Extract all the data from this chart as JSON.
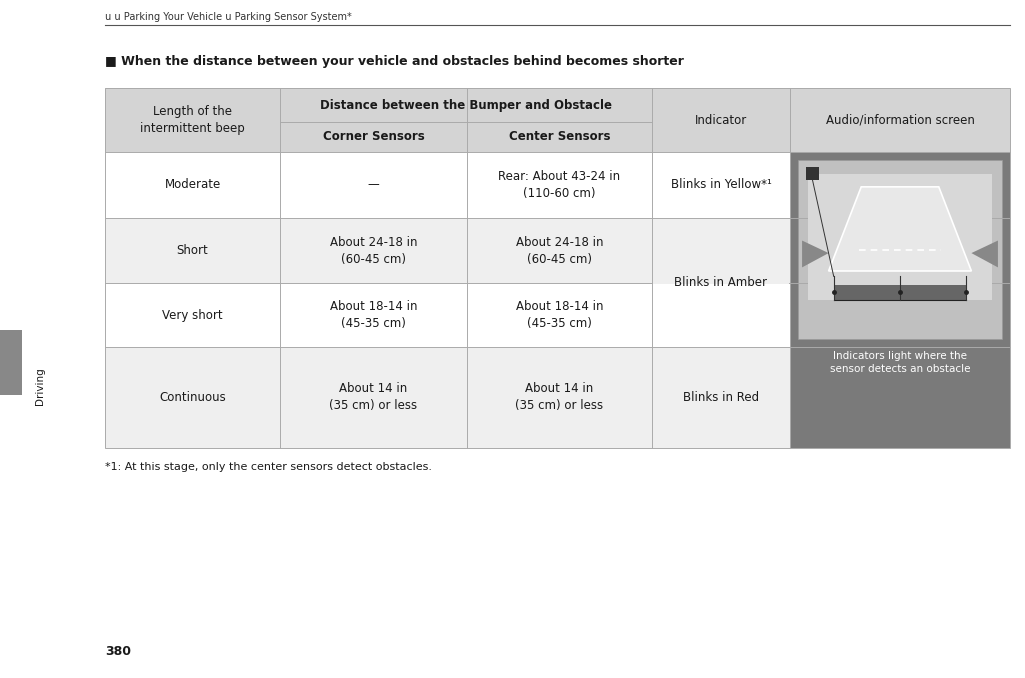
{
  "page_number": "380",
  "breadcrumb": "u u Parking Your Vehicle u Parking Sensor System*",
  "section_title": "■ When the distance between your vehicle and obstacles behind becomes shorter",
  "footnote": "*1: At this stage, only the center sensors detect obstacles.",
  "sidebar_text": "Driving",
  "rows": [
    {
      "beep": "Moderate",
      "corner": "—",
      "center": "Rear: About 43-24 in\n(110-60 cm)",
      "indicator": "Blinks in Yellow*¹"
    },
    {
      "beep": "Short",
      "corner": "About 24-18 in\n(60-45 cm)",
      "center": "About 24-18 in\n(60-45 cm)",
      "indicator": "Blinks in Amber"
    },
    {
      "beep": "Very short",
      "corner": "About 18-14 in\n(45-35 cm)",
      "center": "About 18-14 in\n(45-35 cm)",
      "indicator": null
    },
    {
      "beep": "Continuous",
      "corner": "About 14 in\n(35 cm) or less",
      "center": "About 14 in\n(35 cm) or less",
      "indicator": "Blinks in Red"
    }
  ],
  "image_caption": "Indicators light where the\nsensor detects an obstacle",
  "bg_color_header": "#d4d4d4",
  "bg_color_white": "#ffffff",
  "bg_color_light": "#efefef",
  "bg_color_dark_panel": "#7a7a7a",
  "bg_color_page": "#ffffff",
  "text_color_main": "#1a1a1a",
  "text_color_white": "#ffffff",
  "line_color": "#aaaaaa",
  "sidebar_bg": "#888888"
}
